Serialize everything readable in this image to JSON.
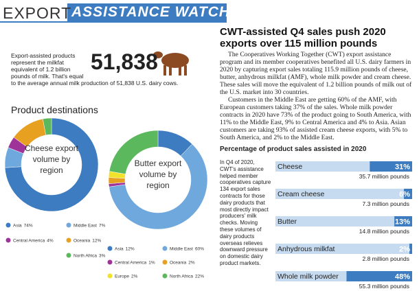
{
  "header": {
    "lead": "EXPORT",
    "title": "ASSISTANCE WATCH"
  },
  "stat": {
    "text": "Export-assisted products represent the milkfat equivalent of 1.2 billion pounds of milk. That's equal",
    "number": "51,838",
    "text_end": "to the average annual milk production of 51,838 U.S. dairy cows."
  },
  "article": {
    "title": "CWT-assisted Q4 sales push 2020 exports over 115 million pounds",
    "paragraphs": [
      "The Cooperatives Working Together (CWT) export assistance program and its member cooperatives benefited all U.S. dairy farmers in 2020 by capturing export sales totaling 115.9 million pounds of cheese, butter, anhydrous milkfat (AMF), whole milk powder and cream cheese. These sales will move the equivalent of 1.2 billion pounds of milk out of the U.S. market into 30 countries.",
      "Customers in the Middle East are getting 60% of the AMF, with European customers taking 37% of the sales. Whole milk powder contracts in 2020 have 73% of the product going to South America, with 11% to the Middle East, 9% to Central America and 4% to Asia. Asian customers are taking 93% of assisted cream cheese exports, with 5% to South America, and 2% to the Middle East."
    ]
  },
  "product_destinations": {
    "title": "Product destinations"
  },
  "side_text": "In Q4 of 2020, CWT's assistance helped member cooperatives capture 134 export sales contracts for those dairy products that most directly impact producers' milk checks. Moving these volumes of dairy products overseas relieves downward pressure on domestic dairy product markets.",
  "chart_data": [
    {
      "type": "pie",
      "title": "Cheese export volume by region",
      "categories": [
        "Asia",
        "Middle East",
        "Central America",
        "Oceania",
        "North Africa"
      ],
      "values": [
        74,
        7,
        4,
        12,
        3
      ],
      "value_labels": [
        "74%",
        "7%",
        "4%",
        "12%",
        "3%"
      ],
      "colors": [
        "#3d7cc0",
        "#6fa8dc",
        "#a0339a",
        "#e8a020",
        "#5cb85c"
      ]
    },
    {
      "type": "pie",
      "title": "Butter export volume by region",
      "categories": [
        "Asia",
        "Middle East",
        "Central America",
        "Oceania",
        "Europe",
        "North Africa"
      ],
      "values": [
        12,
        60,
        1,
        2,
        2,
        22
      ],
      "value_labels": [
        "12%",
        "60%",
        "1%",
        "2%",
        "2%",
        "22%"
      ],
      "colors": [
        "#3d7cc0",
        "#6fa8dc",
        "#a0339a",
        "#e8a020",
        "#f2e22a",
        "#5cb85c"
      ]
    },
    {
      "type": "bar",
      "title": "Percentage of product sales assisted in 2020",
      "categories": [
        "Cheese",
        "Cream cheese",
        "Butter",
        "Anhydrous milkfat",
        "Whole milk powder"
      ],
      "values": [
        31,
        6,
        13,
        2,
        48
      ],
      "value_labels": [
        "31%",
        "6%",
        "13%",
        "2%",
        "48%"
      ],
      "volumes": [
        "35.7 million pounds",
        "7.3 million pounds",
        "14.8 million pounds",
        "2.8 million pounds",
        "55.3 million pounds"
      ],
      "color": "#3d7cc0",
      "track_color": "#c6dbef",
      "xlim": [
        0,
        100
      ]
    }
  ]
}
